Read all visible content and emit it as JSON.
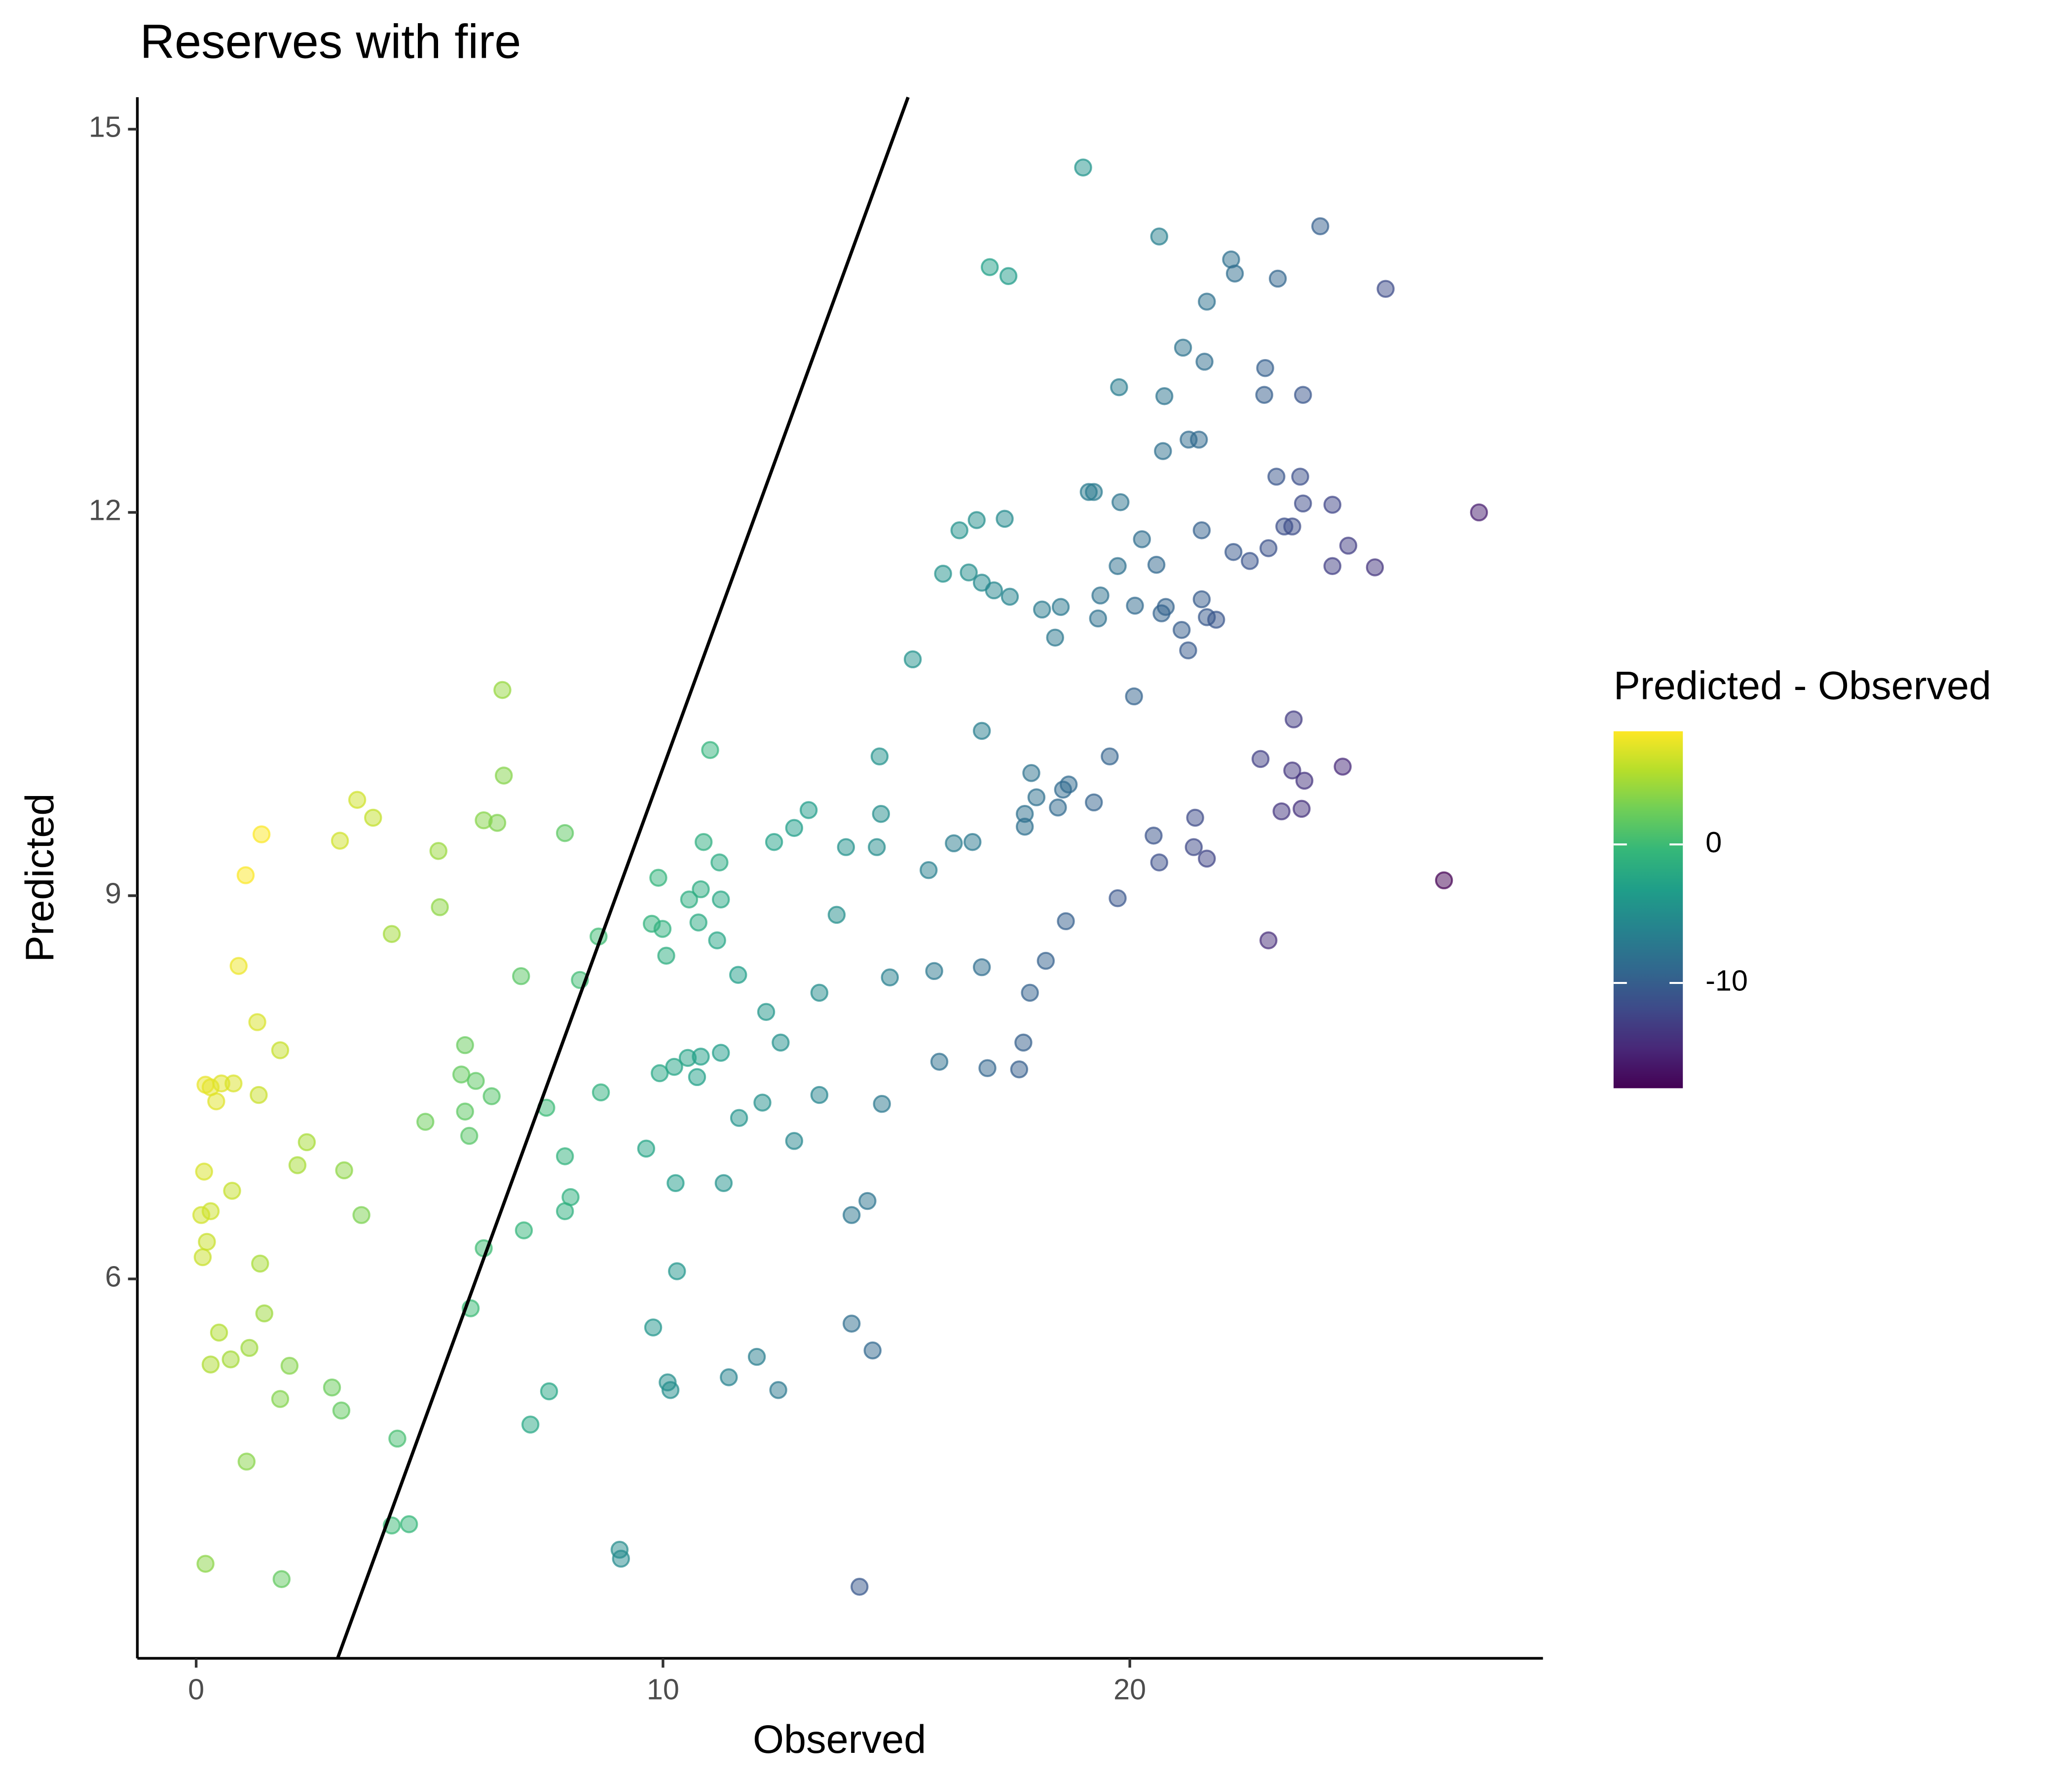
{
  "chart_data": {
    "type": "scatter",
    "title": "Reserves with fire",
    "x_label": "Observed",
    "y_label": "Predicted",
    "xlim": [
      -1.26,
      28.85
    ],
    "ylim": [
      3.03,
      15.25
    ],
    "xticks": [
      0,
      10,
      20
    ],
    "yticks": [
      6,
      9,
      12,
      15
    ],
    "grid": false,
    "reference_line": {
      "slope": 1,
      "intercept": 0
    },
    "colorbar": {
      "title": "Predicted - Observed",
      "lim": [
        -17.6,
        8.17
      ],
      "ticks": [
        0,
        -10
      ]
    },
    "x": [
      19.0,
      20.63,
      24.08,
      22.17,
      22.25,
      23.17,
      17.0,
      17.4,
      25.48,
      21.65,
      21.14,
      21.6,
      22.9,
      19.77,
      20.74,
      22.88,
      23.71,
      21.26,
      21.48,
      20.71,
      23.14,
      23.65,
      19.12,
      19.23,
      19.8,
      23.71,
      24.34,
      27.48,
      16.72,
      17.32,
      16.35,
      23.31,
      23.48,
      21.54,
      20.26,
      24.68,
      22.22,
      22.97,
      22.57,
      19.74,
      20.57,
      24.34,
      25.25,
      16.0,
      16.55,
      16.83,
      17.09,
      17.43,
      19.37,
      21.54,
      18.12,
      18.52,
      20.11,
      20.77,
      20.68,
      19.32,
      21.65,
      21.85,
      21.11,
      18.4,
      21.25,
      15.35,
      20.09,
      6.56,
      11.01,
      16.83,
      23.51,
      14.64,
      19.57,
      22.8,
      24.56,
      23.48,
      23.74,
      6.59,
      17.89,
      18.69,
      18.57,
      18.0,
      3.45,
      19.23,
      18.46,
      23.25,
      23.68,
      13.12,
      14.67,
      17.75,
      3.79,
      6.16,
      6.45,
      21.4,
      12.81,
      17.75,
      1.4,
      7.9,
      20.51,
      3.08,
      12.38,
      10.87,
      16.23,
      16.63,
      13.92,
      14.58,
      21.37,
      5.19,
      11.21,
      20.63,
      21.65,
      1.06,
      15.69,
      9.9,
      26.73,
      10.81,
      10.56,
      11.24,
      19.74,
      5.22,
      13.72,
      9.76,
      9.99,
      10.76,
      18.63,
      4.19,
      8.62,
      11.16,
      22.97,
      10.07,
      18.2,
      0.91,
      16.83,
      15.81,
      6.96,
      11.61,
      8.22,
      14.86,
      13.35,
      17.86,
      12.21,
      1.31,
      12.52,
      17.72,
      5.76,
      1.8,
      11.24,
      10.53,
      10.81,
      15.92,
      10.24,
      16.95,
      17.63,
      9.93,
      5.68,
      10.73,
      5.99,
      0.2,
      0.31,
      0.54,
      0.8,
      1.34,
      0.43,
      6.33,
      8.67,
      13.35,
      12.13,
      14.69,
      7.5,
      5.76,
      11.63,
      4.91,
      5.85,
      12.81,
      2.37,
      9.64,
      7.9,
      2.17,
      3.17,
      0.17,
      0.77,
      10.27,
      11.3,
      8.02,
      14.38,
      7.9,
      0.31,
      0.11,
      3.54,
      14.04,
      7.02,
      0.23,
      6.16,
      0.14,
      1.37,
      10.3,
      5.88,
      1.46,
      9.79,
      14.04,
      0.49,
      14.49,
      1.14,
      0.74,
      0.31,
      12.01,
      2.0,
      11.41,
      10.1,
      2.91,
      10.16,
      12.47,
      7.56,
      1.8,
      3.11,
      7.16,
      4.31,
      1.08,
      4.56,
      4.19,
      9.07,
      9.1,
      0.2,
      1.83,
      14.21
    ],
    "y": [
      14.7,
      14.16,
      14.24,
      13.98,
      13.87,
      13.83,
      13.92,
      13.85,
      13.75,
      13.65,
      13.29,
      13.18,
      13.13,
      12.98,
      12.91,
      12.92,
      12.92,
      12.57,
      12.57,
      12.48,
      12.28,
      12.28,
      12.16,
      12.16,
      12.08,
      12.07,
      12.06,
      12.0,
      11.94,
      11.95,
      11.86,
      11.89,
      11.89,
      11.86,
      11.79,
      11.74,
      11.69,
      11.72,
      11.62,
      11.58,
      11.59,
      11.58,
      11.57,
      11.52,
      11.53,
      11.45,
      11.39,
      11.34,
      11.35,
      11.32,
      11.24,
      11.26,
      11.27,
      11.26,
      11.21,
      11.17,
      11.18,
      11.16,
      11.08,
      11.02,
      10.92,
      10.85,
      10.56,
      10.61,
      10.14,
      10.29,
      10.38,
      10.09,
      10.09,
      10.07,
      10.01,
      9.98,
      9.9,
      9.94,
      9.96,
      9.87,
      9.83,
      9.77,
      9.75,
      9.73,
      9.69,
      9.66,
      9.68,
      9.67,
      9.64,
      9.64,
      9.61,
      9.59,
      9.57,
      9.61,
      9.53,
      9.54,
      9.48,
      9.49,
      9.47,
      9.43,
      9.42,
      9.42,
      9.41,
      9.42,
      9.38,
      9.38,
      9.38,
      9.35,
      9.26,
      9.26,
      9.29,
      9.16,
      9.2,
      9.14,
      9.12,
      9.05,
      8.97,
      8.97,
      8.98,
      8.91,
      8.85,
      8.78,
      8.74,
      8.79,
      8.8,
      8.7,
      8.68,
      8.65,
      8.65,
      8.53,
      8.49,
      8.45,
      8.44,
      8.41,
      8.37,
      8.38,
      8.34,
      8.36,
      8.24,
      8.24,
      8.09,
      8.01,
      7.85,
      7.85,
      7.83,
      7.79,
      7.77,
      7.73,
      7.74,
      7.7,
      7.66,
      7.65,
      7.64,
      7.61,
      7.6,
      7.58,
      7.55,
      7.52,
      7.5,
      7.53,
      7.53,
      7.44,
      7.39,
      7.43,
      7.46,
      7.44,
      7.38,
      7.37,
      7.34,
      7.31,
      7.26,
      7.23,
      7.12,
      7.08,
      7.07,
      7.02,
      6.96,
      6.89,
      6.85,
      6.84,
      6.69,
      6.75,
      6.75,
      6.64,
      6.61,
      6.53,
      6.53,
      6.5,
      6.5,
      6.5,
      6.38,
      6.29,
      6.24,
      6.17,
      6.12,
      6.06,
      5.77,
      5.73,
      5.62,
      5.65,
      5.58,
      5.44,
      5.46,
      5.37,
      5.33,
      5.39,
      5.32,
      5.23,
      5.19,
      5.15,
      5.13,
      5.13,
      5.12,
      5.06,
      4.97,
      4.86,
      4.75,
      4.57,
      4.08,
      4.07,
      3.88,
      3.81,
      3.77,
      3.65,
      3.59
    ]
  }
}
